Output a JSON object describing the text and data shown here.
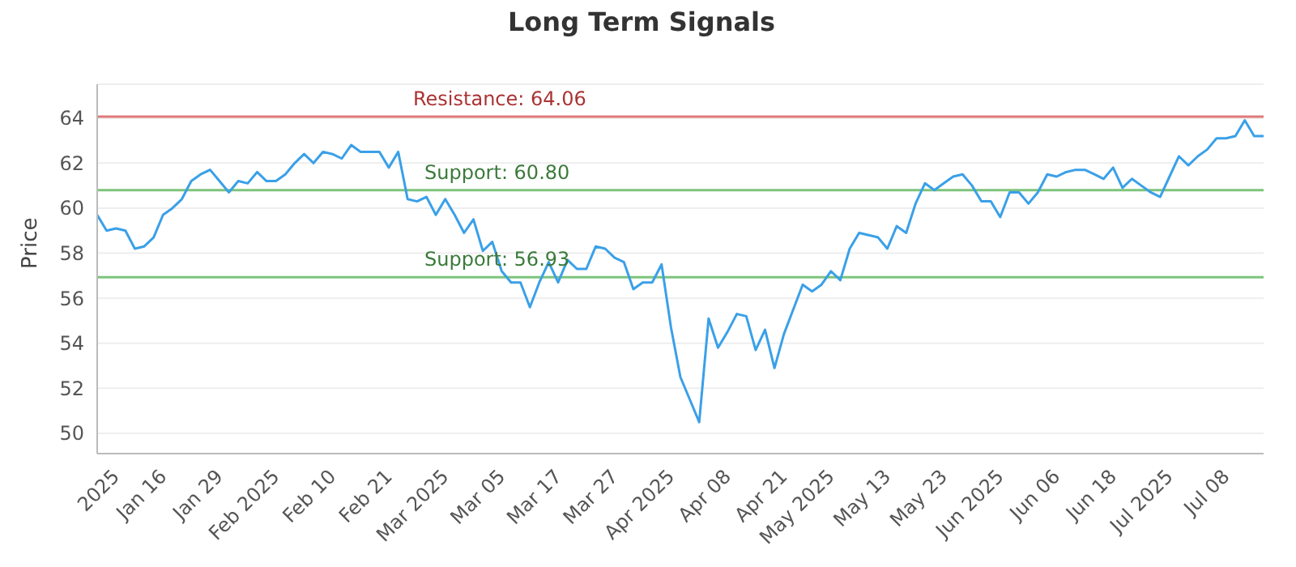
{
  "chart_data": {
    "type": "line",
    "title": "Long Term Signals",
    "ylabel": "Price",
    "categories": [
      null,
      null,
      "2025",
      null,
      null,
      null,
      null,
      "Jan 16",
      null,
      null,
      null,
      null,
      null,
      "Jan 29",
      null,
      null,
      null,
      null,
      null,
      "Feb 2025",
      null,
      null,
      null,
      null,
      null,
      "Feb 10",
      null,
      null,
      null,
      null,
      null,
      "Feb 21",
      null,
      null,
      null,
      null,
      null,
      "Mar 2025",
      null,
      null,
      null,
      null,
      null,
      "Mar 05",
      null,
      null,
      null,
      null,
      null,
      "Mar 17",
      null,
      null,
      null,
      null,
      null,
      "Mar 27",
      null,
      null,
      null,
      null,
      null,
      "Apr 2025",
      null,
      null,
      null,
      null,
      null,
      "Apr 08",
      null,
      null,
      null,
      null,
      null,
      "Apr 21",
      null,
      null,
      null,
      null,
      "May 2025",
      null,
      null,
      null,
      null,
      null,
      "May 13",
      null,
      null,
      null,
      null,
      null,
      "May 23",
      null,
      null,
      null,
      null,
      null,
      "Jun 2025",
      null,
      null,
      null,
      null,
      null,
      "Jun 06",
      null,
      null,
      null,
      null,
      null,
      "Jun 18",
      null,
      null,
      null,
      null,
      null,
      "Jul 2025",
      null,
      null,
      null,
      null,
      null,
      "Jul 08",
      null,
      null,
      null,
      null
    ],
    "series": [
      {
        "color": "#3aa0e8",
        "values": [
          59.7,
          59.0,
          59.1,
          59.0,
          58.2,
          58.3,
          58.7,
          59.7,
          60.0,
          60.4,
          61.2,
          61.5,
          61.7,
          61.2,
          60.7,
          61.2,
          61.1,
          61.6,
          61.2,
          61.2,
          61.5,
          62.0,
          62.4,
          62.0,
          62.5,
          62.4,
          62.2,
          62.8,
          62.5,
          62.5,
          62.5,
          61.8,
          62.5,
          60.4,
          60.3,
          60.5,
          59.7,
          60.4,
          59.7,
          58.9,
          59.5,
          58.1,
          58.5,
          57.2,
          56.7,
          56.7,
          55.6,
          56.7,
          57.6,
          56.7,
          57.7,
          57.3,
          57.3,
          58.3,
          58.2,
          57.8,
          57.6,
          56.4,
          56.7,
          56.7,
          57.5,
          54.7,
          52.5,
          51.5,
          50.5,
          55.1,
          53.8,
          54.5,
          55.3,
          55.2,
          53.7,
          54.6,
          52.9,
          54.4,
          55.5,
          56.6,
          56.3,
          56.6,
          57.2,
          56.8,
          58.2,
          58.9,
          58.8,
          58.7,
          58.2,
          59.2,
          58.9,
          60.2,
          61.1,
          60.8,
          61.1,
          61.4,
          61.5,
          61.0,
          60.3,
          60.3,
          59.6,
          60.7,
          60.7,
          60.2,
          60.7,
          61.5,
          61.4,
          61.6,
          61.7,
          61.7,
          61.5,
          61.3,
          61.8,
          60.9,
          61.3,
          61.0,
          60.7,
          60.5,
          61.4,
          62.3,
          61.9,
          62.3,
          62.6,
          63.1,
          63.1,
          63.2,
          63.9,
          63.2,
          63.2
        ]
      }
    ],
    "ylim": [
      49.1,
      65.5
    ],
    "yticks": [
      50,
      52,
      54,
      56,
      58,
      60,
      62,
      64
    ],
    "grid": "y",
    "legend": false,
    "marker": "none",
    "line_style": "solid",
    "ref_lines": [
      {
        "axis": "y",
        "value": 64.06,
        "label": "Resistance: 64.06",
        "color": "#e07a7a"
      },
      {
        "axis": "y",
        "value": 60.8,
        "label": "Support: 60.80",
        "color": "#7cc47c"
      },
      {
        "axis": "y",
        "value": 56.93,
        "label": "Support: 56.93",
        "color": "#7cc47c"
      }
    ]
  }
}
